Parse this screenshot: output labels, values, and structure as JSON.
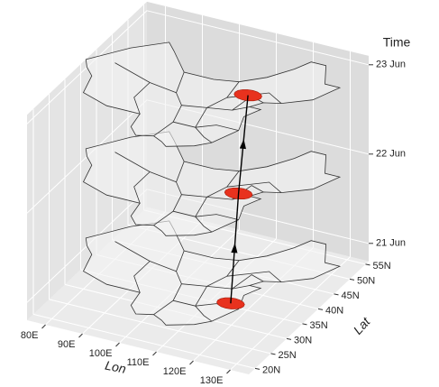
{
  "chart_data": {
    "type": "map3d",
    "xlabel": "Lon",
    "ylabel": "Lat",
    "zlabel": "Time",
    "xlim": [
      75,
      135
    ],
    "ylim": [
      18,
      56
    ],
    "zlim": [
      20.8,
      23.1
    ],
    "xticks": [
      {
        "value": 80,
        "label": "80E"
      },
      {
        "value": 90,
        "label": "90E"
      },
      {
        "value": 100,
        "label": "100E"
      },
      {
        "value": 110,
        "label": "110E"
      },
      {
        "value": 120,
        "label": "120E"
      },
      {
        "value": 130,
        "label": "130E"
      }
    ],
    "yticks": [
      {
        "value": 20,
        "label": "20N"
      },
      {
        "value": 25,
        "label": "25N"
      },
      {
        "value": 30,
        "label": "30N"
      },
      {
        "value": 35,
        "label": "35N"
      },
      {
        "value": 40,
        "label": "40N"
      },
      {
        "value": 45,
        "label": "45N"
      },
      {
        "value": 50,
        "label": "50N"
      },
      {
        "value": 55,
        "label": "55N"
      }
    ],
    "zticks": [
      {
        "value": 21,
        "label": "21 Jun"
      },
      {
        "value": 22,
        "label": "22 Jun"
      },
      {
        "value": 23,
        "label": "23 Jun"
      }
    ],
    "events": {
      "x": [
        119,
        116,
        116
      ],
      "y": [
        31,
        37,
        40
      ],
      "z": [
        21,
        22,
        23
      ]
    },
    "event_color": "#e8321e",
    "track_color": "#000000",
    "grid": true
  }
}
